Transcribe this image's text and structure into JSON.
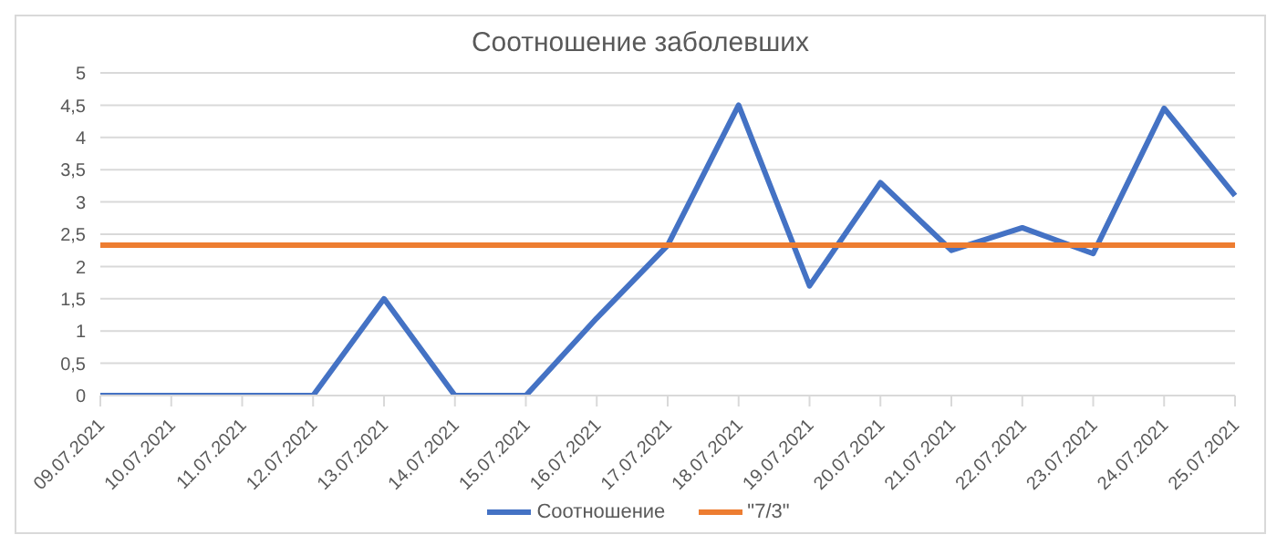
{
  "chart_data": {
    "type": "line",
    "title": "Соотношение заболевших",
    "categories": [
      "09.07.2021",
      "10.07.2021",
      "11.07.2021",
      "12.07.2021",
      "13.07.2021",
      "14.07.2021",
      "15.07.2021",
      "16.07.2021",
      "17.07.2021",
      "18.07.2021",
      "19.07.2021",
      "20.07.2021",
      "21.07.2021",
      "22.07.2021",
      "23.07.2021",
      "24.07.2021",
      "25.07.2021"
    ],
    "series": [
      {
        "name": "Соотношение",
        "color": "#4472c4",
        "values": [
          0,
          0,
          0,
          0,
          1.5,
          0,
          0,
          1.2,
          2.33,
          4.5,
          1.7,
          3.3,
          2.25,
          2.6,
          2.2,
          4.45,
          3.1
        ]
      },
      {
        "name": "\"7/3\"",
        "color": "#ed7d31",
        "values": [
          2.33,
          2.33,
          2.33,
          2.33,
          2.33,
          2.33,
          2.33,
          2.33,
          2.33,
          2.33,
          2.33,
          2.33,
          2.33,
          2.33,
          2.33,
          2.33,
          2.33
        ]
      }
    ],
    "ylim": [
      0,
      5
    ],
    "yticks": [
      0,
      {
        "value": 0.5,
        "label": "0,5"
      },
      1,
      {
        "value": 1.5,
        "label": "1,5"
      },
      2,
      {
        "value": 2.5,
        "label": "2,5"
      },
      3,
      {
        "value": 3.5,
        "label": "3,5"
      },
      4,
      {
        "value": 4.5,
        "label": "4,5"
      },
      5
    ],
    "grid": "y",
    "legend": "bottom",
    "marker": "none",
    "line_style": "solid"
  }
}
